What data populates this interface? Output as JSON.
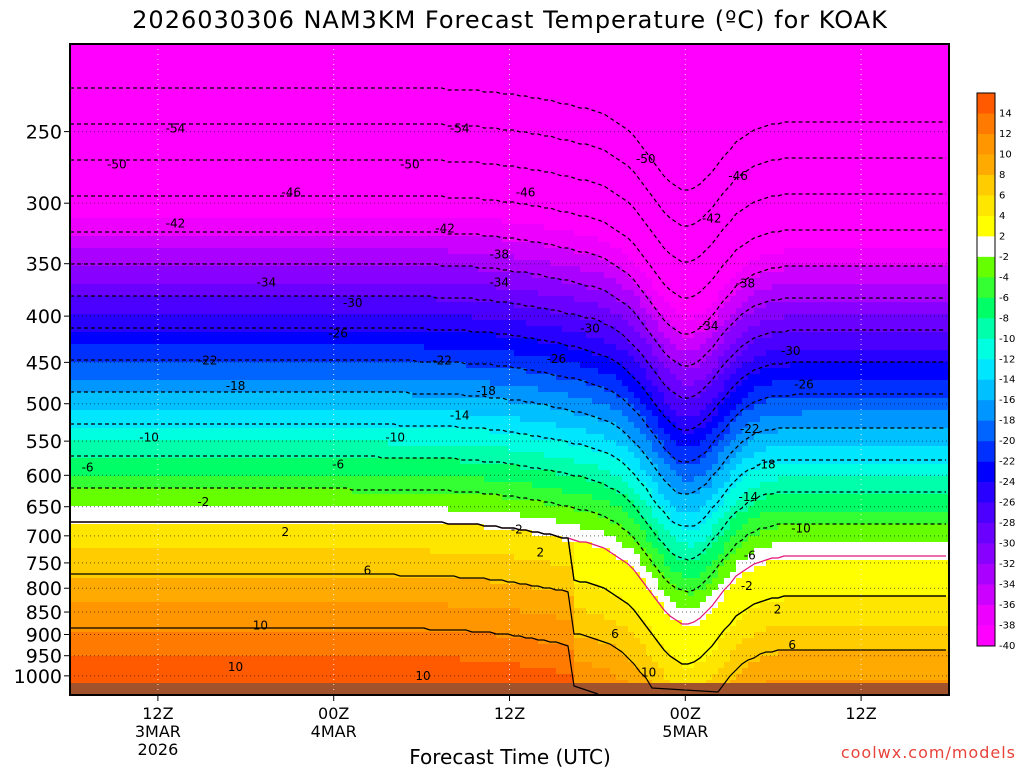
{
  "chart_data": {
    "type": "heatmap",
    "title": "2026030306 NAM3KM Forecast Temperature (ºC) for KOAK",
    "xlabel": "Forecast Time (UTC)",
    "ylabel": "",
    "credit": "coolwx.com/models",
    "y_axis": {
      "quantity": "pressure (hPa)",
      "log_scale": true,
      "range": [
        1050,
        200
      ],
      "ticks": [
        "250",
        "300",
        "350",
        "400",
        "450",
        "500",
        "550",
        "600",
        "650",
        "700",
        "750",
        "800",
        "850",
        "900",
        "950",
        "1000"
      ]
    },
    "x_axis": {
      "range_hours_since_2026030306": [
        0,
        60
      ],
      "ticks": [
        {
          "line1": "12Z",
          "line2": "3MAR",
          "line3": "2026"
        },
        {
          "line1": "00Z",
          "line2": "4MAR",
          "line3": ""
        },
        {
          "line1": "12Z",
          "line2": "",
          "line3": ""
        },
        {
          "line1": "00Z",
          "line2": "5MAR",
          "line3": ""
        },
        {
          "line1": "12Z",
          "line2": "",
          "line3": ""
        }
      ]
    },
    "grid": true,
    "colorbar": {
      "placement": "right",
      "labels": [
        "14",
        "12",
        "10",
        "8",
        "6",
        "4",
        "2",
        "-2",
        "-4",
        "-6",
        "-8",
        "-10",
        "-12",
        "-14",
        "-16",
        "-18",
        "-20",
        "-22",
        "-24",
        "-26",
        "-28",
        "-30",
        "-32",
        "-34",
        "-36",
        "-38",
        "-40"
      ]
    },
    "contour_labels": [
      {
        "t": 7.2,
        "p": 248,
        "v": "-54"
      },
      {
        "t": 26.6,
        "p": 248,
        "v": "-54"
      },
      {
        "t": 3.2,
        "p": 272,
        "v": "-50"
      },
      {
        "t": 23.2,
        "p": 272,
        "v": "-50"
      },
      {
        "t": 39.3,
        "p": 268,
        "v": "-50"
      },
      {
        "t": 15.1,
        "p": 292,
        "v": "-46"
      },
      {
        "t": 31.1,
        "p": 292,
        "v": "-46"
      },
      {
        "t": 45.6,
        "p": 280,
        "v": "-46"
      },
      {
        "t": 7.2,
        "p": 316,
        "v": "-42"
      },
      {
        "t": 25.6,
        "p": 320,
        "v": "-42"
      },
      {
        "t": 43.8,
        "p": 312,
        "v": "-42"
      },
      {
        "t": 29.3,
        "p": 342,
        "v": "-38"
      },
      {
        "t": 46.1,
        "p": 368,
        "v": "-38"
      },
      {
        "t": 13.4,
        "p": 367,
        "v": "-34"
      },
      {
        "t": 29.3,
        "p": 367,
        "v": "-34"
      },
      {
        "t": 43.6,
        "p": 410,
        "v": "-34"
      },
      {
        "t": 19.3,
        "p": 387,
        "v": "-30"
      },
      {
        "t": 35.5,
        "p": 413,
        "v": "-30"
      },
      {
        "t": 49.2,
        "p": 437,
        "v": "-30"
      },
      {
        "t": 18.3,
        "p": 418,
        "v": "-26"
      },
      {
        "t": 33.2,
        "p": 446,
        "v": "-26"
      },
      {
        "t": 50.1,
        "p": 476,
        "v": "-26"
      },
      {
        "t": 9.4,
        "p": 448,
        "v": "-22"
      },
      {
        "t": 25.4,
        "p": 448,
        "v": "-22"
      },
      {
        "t": 46.4,
        "p": 533,
        "v": "-22"
      },
      {
        "t": 11.3,
        "p": 478,
        "v": "-18"
      },
      {
        "t": 28.4,
        "p": 484,
        "v": "-18"
      },
      {
        "t": 47.5,
        "p": 584,
        "v": "-18"
      },
      {
        "t": 26.6,
        "p": 515,
        "v": "-14"
      },
      {
        "t": 46.3,
        "p": 634,
        "v": "-14"
      },
      {
        "t": 5.4,
        "p": 545,
        "v": "-10"
      },
      {
        "t": 22.2,
        "p": 545,
        "v": "-10"
      },
      {
        "t": 49.9,
        "p": 687,
        "v": "-10"
      },
      {
        "t": 1.2,
        "p": 588,
        "v": "-6"
      },
      {
        "t": 18.3,
        "p": 584,
        "v": "-6"
      },
      {
        "t": 46.4,
        "p": 736,
        "v": "-6"
      },
      {
        "t": 9.1,
        "p": 642,
        "v": "-2"
      },
      {
        "t": 30.5,
        "p": 689,
        "v": "-2"
      },
      {
        "t": 46.2,
        "p": 795,
        "v": "-2"
      },
      {
        "t": 14.7,
        "p": 693,
        "v": "2"
      },
      {
        "t": 32.1,
        "p": 730,
        "v": "2"
      },
      {
        "t": 48.3,
        "p": 845,
        "v": "2"
      },
      {
        "t": 20.3,
        "p": 765,
        "v": "6"
      },
      {
        "t": 37.2,
        "p": 899,
        "v": "6"
      },
      {
        "t": 49.3,
        "p": 924,
        "v": "6"
      },
      {
        "t": 13.0,
        "p": 880,
        "v": "10"
      },
      {
        "t": 11.3,
        "p": 978,
        "v": "10"
      },
      {
        "t": 24.1,
        "p": 1000,
        "v": "10"
      },
      {
        "t": 39.5,
        "p": 992,
        "v": "10"
      }
    ],
    "palette": [
      "#ff00ff",
      "#ee00ff",
      "#cc00ff",
      "#aa00ff",
      "#8800ff",
      "#6a00ff",
      "#4b00ff",
      "#2800ff",
      "#0000ff",
      "#0030ff",
      "#0064ff",
      "#0096ff",
      "#00c0ff",
      "#00e6ff",
      "#00ffe0",
      "#00ffaa",
      "#00ff66",
      "#33ff33",
      "#66ff00",
      "#ffffff",
      "#ffff00",
      "#ffe600",
      "#ffcc00",
      "#ffaa00",
      "#ff9600",
      "#ff7a00",
      "#ff5a00"
    ]
  }
}
